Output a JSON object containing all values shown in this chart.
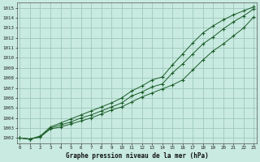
{
  "title": "Graphe pression niveau de la mer (hPa)",
  "bg_color": "#c8eae0",
  "grid_color": "#a0c8bc",
  "line_color": "#1a5c28",
  "ylim": [
    1001.5,
    1015.5
  ],
  "xlim": [
    -0.3,
    23.3
  ],
  "yticks": [
    1002,
    1003,
    1004,
    1005,
    1006,
    1007,
    1008,
    1009,
    1010,
    1011,
    1012,
    1013,
    1014,
    1015
  ],
  "xticks": [
    0,
    1,
    2,
    3,
    4,
    5,
    6,
    7,
    8,
    9,
    10,
    11,
    12,
    13,
    14,
    15,
    16,
    17,
    18,
    19,
    20,
    21,
    22,
    23
  ],
  "series": [
    [
      1002.0,
      1001.9,
      1002.1,
      1002.9,
      1003.1,
      1003.4,
      1003.7,
      1004.0,
      1004.4,
      1004.8,
      1005.1,
      1005.6,
      1006.1,
      1006.5,
      1006.9,
      1007.3,
      1007.8,
      1008.8,
      1009.8,
      1010.7,
      1011.4,
      1012.2,
      1013.0,
      1014.1
    ],
    [
      1002.0,
      1001.9,
      1002.1,
      1003.0,
      1003.3,
      1003.6,
      1004.0,
      1004.3,
      1004.7,
      1005.1,
      1005.5,
      1006.2,
      1006.6,
      1007.1,
      1007.4,
      1008.5,
      1009.4,
      1010.4,
      1011.4,
      1012.1,
      1012.9,
      1013.6,
      1014.2,
      1014.9
    ],
    [
      1002.0,
      1001.9,
      1002.2,
      1003.1,
      1003.5,
      1003.9,
      1004.3,
      1004.7,
      1005.1,
      1005.5,
      1006.0,
      1006.7,
      1007.2,
      1007.8,
      1008.1,
      1009.3,
      1010.4,
      1011.5,
      1012.5,
      1013.2,
      1013.8,
      1014.3,
      1014.7,
      1015.1
    ]
  ]
}
